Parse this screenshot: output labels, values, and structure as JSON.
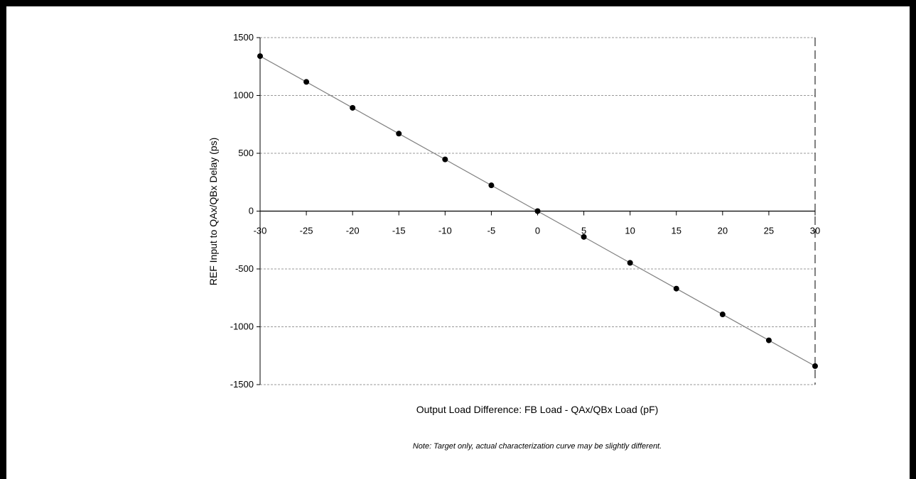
{
  "chart_data": {
    "type": "line",
    "xlabel": "Output Load Difference:  FB Load - QAx/QBx Load (pF)",
    "ylabel": "REF Input to QAx/QBx Delay (ps)",
    "note": "Note:  Target only, actual characterization curve may be slightly different.",
    "xlim": [
      -30,
      30
    ],
    "ylim": [
      -1500,
      1500
    ],
    "xticks": [
      -30,
      -25,
      -20,
      -15,
      -10,
      -5,
      0,
      5,
      10,
      15,
      20,
      25,
      30
    ],
    "yticks": [
      1500,
      1000,
      500,
      0,
      -500,
      -1000,
      -1500
    ],
    "grid": "horizontal dashed",
    "series": [
      {
        "x": [
          -30,
          -25,
          -20,
          -15,
          -10,
          -5,
          0,
          5,
          10,
          15,
          20,
          25,
          30
        ],
        "y": [
          1340,
          1117,
          893,
          670,
          447,
          223,
          0,
          -223,
          -447,
          -670,
          -893,
          -1117,
          -1340
        ]
      }
    ]
  }
}
